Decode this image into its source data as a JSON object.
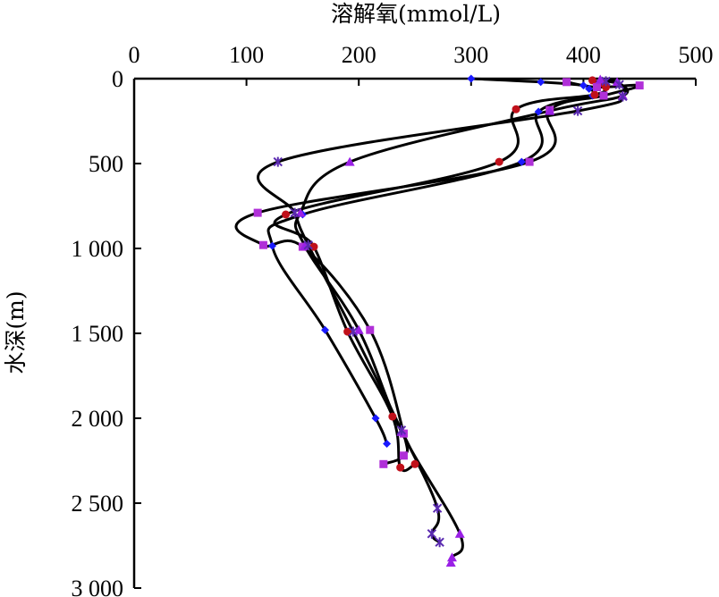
{
  "chart_data": {
    "type": "line",
    "xlabel": "溶解氧(mmol/L)",
    "ylabel": "水深(m)",
    "xlim": [
      0,
      500
    ],
    "ylim": [
      0,
      3000
    ],
    "x_axis_position": "top",
    "y_inverted": true,
    "x_ticks": [
      "0",
      "100",
      "200",
      "300",
      "400",
      "500"
    ],
    "y_ticks": [
      "0",
      "500",
      "1 000",
      "1 500",
      "2 000",
      "2 500",
      "3 000"
    ],
    "grid": false,
    "legend": "none",
    "series": [
      {
        "marker": "diamond",
        "color": "#1a1aff",
        "points": [
          [
            300,
            0
          ],
          [
            362,
            20
          ],
          [
            400,
            40
          ],
          [
            405,
            60
          ],
          [
            408,
            100
          ],
          [
            360,
            195
          ],
          [
            345,
            490
          ],
          [
            150,
            800
          ],
          [
            123,
            985
          ],
          [
            170,
            1480
          ],
          [
            215,
            2000
          ],
          [
            225,
            2150
          ]
        ]
      },
      {
        "marker": "circle",
        "color": "#c0101a",
        "points": [
          [
            408,
            10
          ],
          [
            418,
            30
          ],
          [
            420,
            50
          ],
          [
            410,
            95
          ],
          [
            340,
            180
          ],
          [
            325,
            490
          ],
          [
            135,
            800
          ],
          [
            160,
            990
          ],
          [
            190,
            1490
          ],
          [
            230,
            1990
          ],
          [
            237,
            2290
          ],
          [
            250,
            2270
          ]
        ]
      },
      {
        "marker": "square",
        "color": "#b030d8",
        "points": [
          [
            385,
            20
          ],
          [
            412,
            50
          ],
          [
            450,
            40
          ],
          [
            418,
            100
          ],
          [
            370,
            185
          ],
          [
            352,
            490
          ],
          [
            110,
            790
          ],
          [
            115,
            980
          ],
          [
            150,
            990
          ],
          [
            210,
            1480
          ],
          [
            240,
            2090
          ],
          [
            240,
            2220
          ],
          [
            222,
            2270
          ]
        ]
      },
      {
        "marker": "triangle",
        "color": "#9a20e6",
        "points": [
          [
            415,
            5
          ],
          [
            430,
            20
          ],
          [
            435,
            100
          ],
          [
            370,
            190
          ],
          [
            192,
            490
          ],
          [
            148,
            790
          ],
          [
            152,
            985
          ],
          [
            200,
            1480
          ],
          [
            238,
            2080
          ],
          [
            290,
            2680
          ],
          [
            283,
            2820
          ],
          [
            282,
            2850
          ]
        ]
      },
      {
        "marker": "x",
        "color": "#5a2ab0",
        "points": [
          [
            420,
            15
          ],
          [
            432,
            35
          ],
          [
            435,
            105
          ],
          [
            395,
            190
          ],
          [
            128,
            490
          ],
          [
            143,
            790
          ],
          [
            155,
            980
          ],
          [
            195,
            1490
          ],
          [
            238,
            2070
          ],
          [
            270,
            2530
          ],
          [
            265,
            2680
          ],
          [
            272,
            2730
          ]
        ]
      }
    ]
  }
}
